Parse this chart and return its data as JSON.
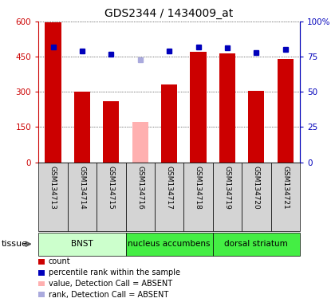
{
  "title": "GDS2344 / 1434009_at",
  "samples": [
    "GSM134713",
    "GSM134714",
    "GSM134715",
    "GSM134716",
    "GSM134717",
    "GSM134718",
    "GSM134719",
    "GSM134720",
    "GSM134721"
  ],
  "bar_values": [
    595,
    300,
    260,
    170,
    330,
    470,
    465,
    305,
    440
  ],
  "bar_absent": [
    false,
    false,
    false,
    true,
    false,
    false,
    false,
    false,
    false
  ],
  "bar_color_present": "#cc0000",
  "bar_color_absent": "#ffb0b0",
  "rank_values": [
    82,
    79,
    77,
    73,
    79,
    82,
    81,
    78,
    80
  ],
  "rank_absent": [
    false,
    false,
    false,
    true,
    false,
    false,
    false,
    false,
    false
  ],
  "rank_color_present": "#0000bb",
  "rank_color_absent": "#aaaadd",
  "ylim_left": [
    0,
    600
  ],
  "ylim_right": [
    0,
    100
  ],
  "yticks_left": [
    0,
    150,
    300,
    450,
    600
  ],
  "ytick_labels_left": [
    "0",
    "150",
    "300",
    "450",
    "600"
  ],
  "yticks_right": [
    0,
    25,
    50,
    75,
    100
  ],
  "ytick_labels_right": [
    "0",
    "25",
    "50",
    "75",
    "100%"
  ],
  "left_axis_color": "#cc0000",
  "right_axis_color": "#0000bb",
  "legend_items": [
    {
      "color": "#cc0000",
      "label": "count"
    },
    {
      "color": "#0000bb",
      "label": "percentile rank within the sample"
    },
    {
      "color": "#ffb0b0",
      "label": "value, Detection Call = ABSENT"
    },
    {
      "color": "#aaaadd",
      "label": "rank, Detection Call = ABSENT"
    }
  ],
  "tissue_label": "tissue",
  "tissue_data": [
    {
      "label": "BNST",
      "start": 0,
      "end": 3,
      "color": "#ccffcc"
    },
    {
      "label": "nucleus accumbens",
      "start": 3,
      "end": 6,
      "color": "#44ee44"
    },
    {
      "label": "dorsal striatum",
      "start": 6,
      "end": 9,
      "color": "#44ee44"
    }
  ],
  "bar_width": 0.55
}
